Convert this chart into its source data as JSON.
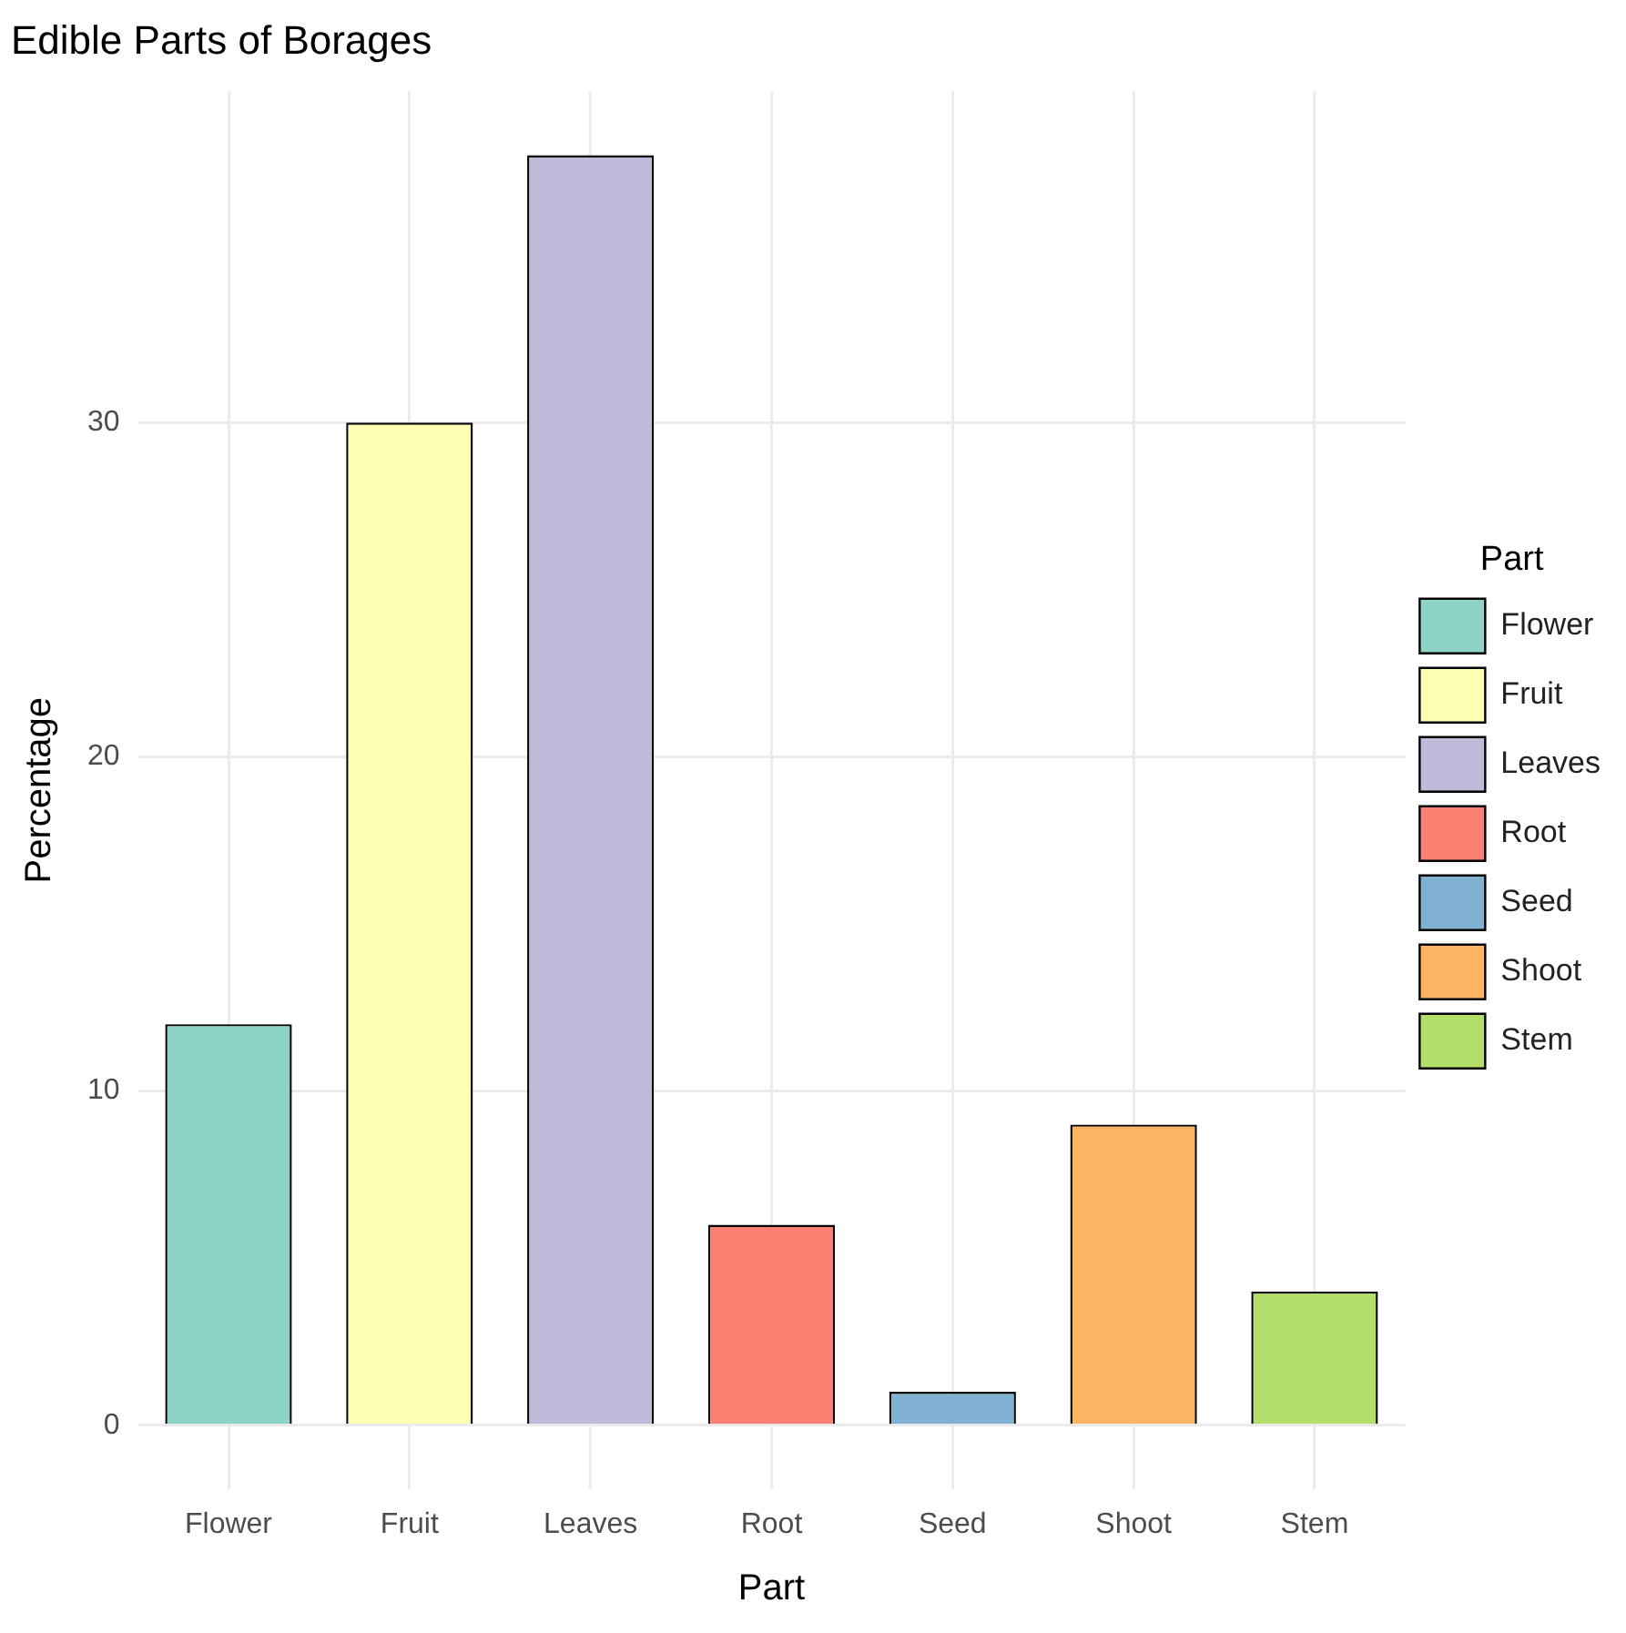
{
  "chart_data": {
    "type": "bar",
    "title": "Edible Parts of Borages",
    "xlabel": "Part",
    "ylabel": "Percentage",
    "legend_title": "Part",
    "categories": [
      "Flower",
      "Fruit",
      "Leaves",
      "Root",
      "Seed",
      "Shoot",
      "Stem"
    ],
    "series": [
      {
        "name": "Flower",
        "color": "#8dd3c7",
        "values": [
          12,
          null,
          null,
          null,
          null,
          null,
          null
        ]
      },
      {
        "name": "Fruit",
        "color": "#ffffb3",
        "values": [
          null,
          30,
          null,
          null,
          null,
          null,
          null
        ]
      },
      {
        "name": "Leaves",
        "color": "#bebada",
        "values": [
          null,
          null,
          38,
          null,
          null,
          null,
          null
        ]
      },
      {
        "name": "Root",
        "color": "#fb8072",
        "values": [
          null,
          null,
          null,
          6,
          null,
          null,
          null
        ]
      },
      {
        "name": "Seed",
        "color": "#80b1d3",
        "values": [
          null,
          null,
          null,
          null,
          1,
          null,
          null
        ]
      },
      {
        "name": "Shoot",
        "color": "#fdb462",
        "values": [
          null,
          null,
          null,
          null,
          null,
          9,
          null
        ]
      },
      {
        "name": "Stem",
        "color": "#b3de69",
        "values": [
          null,
          null,
          null,
          null,
          null,
          null,
          4
        ]
      }
    ],
    "ylim": [
      -1.9,
      39.9
    ],
    "yticks": [
      0,
      10,
      20,
      30
    ],
    "grid": true,
    "legend": "right"
  }
}
